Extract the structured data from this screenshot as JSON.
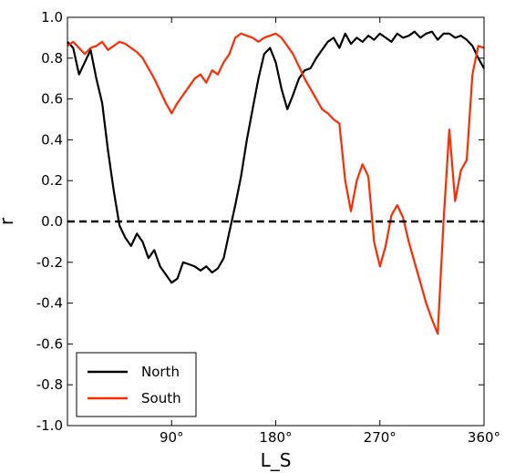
{
  "chart_data": {
    "type": "line",
    "title": "",
    "xlabel": "L_S",
    "ylabel": "r",
    "xlim": [
      0,
      360
    ],
    "ylim": [
      -1.0,
      1.0
    ],
    "grid": false,
    "legend_position": "lower-left",
    "x_ticks": [
      90,
      180,
      270,
      360
    ],
    "x_tick_labels": [
      "90°",
      "180°",
      "270°",
      "360°"
    ],
    "y_ticks": [
      -1.0,
      -0.8,
      -0.6,
      -0.4,
      -0.2,
      0.0,
      0.2,
      0.4,
      0.6,
      0.8,
      1.0
    ],
    "y_tick_labels": [
      "-1.0",
      "-0.8",
      "-0.6",
      "-0.4",
      "-0.2",
      "0.0",
      "0.2",
      "0.4",
      "0.6",
      "0.8",
      "1.0"
    ],
    "reference_line": {
      "y": 0.0,
      "style": "dashed",
      "color": "#000000"
    },
    "series": [
      {
        "name": "North",
        "color": "#000000",
        "x": [
          0,
          5,
          10,
          15,
          20,
          25,
          30,
          35,
          40,
          45,
          50,
          55,
          60,
          65,
          70,
          75,
          80,
          85,
          90,
          95,
          100,
          105,
          110,
          115,
          120,
          125,
          130,
          135,
          140,
          145,
          150,
          155,
          160,
          165,
          170,
          175,
          180,
          185,
          190,
          195,
          200,
          205,
          210,
          215,
          220,
          225,
          230,
          235,
          240,
          245,
          250,
          255,
          260,
          265,
          270,
          275,
          280,
          285,
          290,
          295,
          300,
          305,
          310,
          315,
          320,
          325,
          330,
          335,
          340,
          345,
          350,
          355,
          360
        ],
        "y": [
          0.88,
          0.85,
          0.72,
          0.78,
          0.84,
          0.7,
          0.58,
          0.35,
          0.15,
          -0.02,
          -0.08,
          -0.12,
          -0.06,
          -0.1,
          -0.18,
          -0.14,
          -0.22,
          -0.26,
          -0.3,
          -0.28,
          -0.2,
          -0.21,
          -0.22,
          -0.24,
          -0.22,
          -0.25,
          -0.23,
          -0.18,
          -0.05,
          0.08,
          0.22,
          0.4,
          0.55,
          0.7,
          0.82,
          0.85,
          0.78,
          0.65,
          0.55,
          0.62,
          0.7,
          0.74,
          0.75,
          0.8,
          0.84,
          0.88,
          0.9,
          0.85,
          0.92,
          0.87,
          0.9,
          0.88,
          0.91,
          0.89,
          0.92,
          0.9,
          0.88,
          0.92,
          0.9,
          0.91,
          0.93,
          0.9,
          0.92,
          0.93,
          0.89,
          0.92,
          0.92,
          0.9,
          0.91,
          0.89,
          0.86,
          0.8,
          0.75
        ]
      },
      {
        "name": "South",
        "color": "#ff2a00",
        "x": [
          0,
          5,
          10,
          15,
          20,
          25,
          30,
          35,
          40,
          45,
          50,
          55,
          60,
          65,
          70,
          75,
          80,
          85,
          90,
          95,
          100,
          105,
          110,
          115,
          120,
          125,
          130,
          135,
          140,
          145,
          150,
          155,
          160,
          165,
          170,
          175,
          180,
          185,
          190,
          195,
          200,
          205,
          210,
          215,
          220,
          225,
          230,
          235,
          240,
          245,
          250,
          255,
          260,
          265,
          270,
          275,
          280,
          285,
          290,
          295,
          300,
          305,
          310,
          315,
          320,
          325,
          330,
          335,
          340,
          345,
          350,
          355,
          360
        ],
        "y": [
          0.86,
          0.88,
          0.85,
          0.82,
          0.85,
          0.86,
          0.88,
          0.84,
          0.86,
          0.88,
          0.87,
          0.85,
          0.83,
          0.8,
          0.75,
          0.7,
          0.64,
          0.58,
          0.53,
          0.58,
          0.62,
          0.66,
          0.7,
          0.72,
          0.68,
          0.74,
          0.72,
          0.78,
          0.82,
          0.9,
          0.92,
          0.91,
          0.9,
          0.88,
          0.9,
          0.91,
          0.92,
          0.9,
          0.86,
          0.82,
          0.76,
          0.7,
          0.65,
          0.6,
          0.55,
          0.53,
          0.5,
          0.48,
          0.2,
          0.05,
          0.2,
          0.28,
          0.22,
          -0.1,
          -0.22,
          -0.12,
          0.03,
          0.08,
          0.02,
          -0.1,
          -0.2,
          -0.3,
          -0.4,
          -0.48,
          -0.55,
          0.0,
          0.45,
          0.1,
          0.25,
          0.3,
          0.72,
          0.86,
          0.85
        ]
      }
    ]
  }
}
